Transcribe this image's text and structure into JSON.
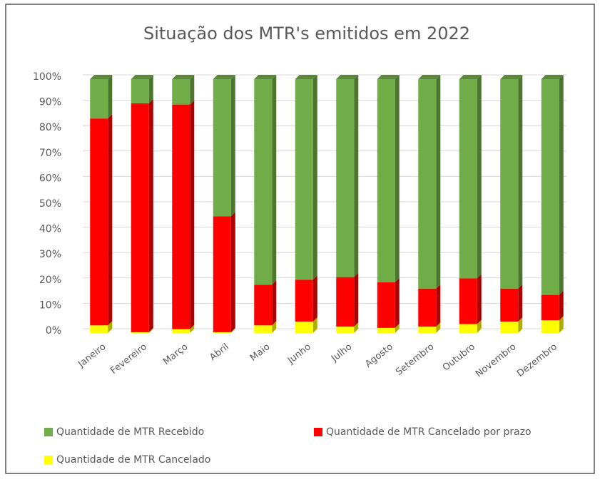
{
  "chart_data": {
    "type": "stacked-bar-3d",
    "title": "Situação dos MTR's emitidos em 2022",
    "categories": [
      "Janeiro",
      "Fevereiro",
      "Março",
      "Abril",
      "Maio",
      "Junho",
      "Julho",
      "Agosto",
      "Setembro",
      "Outubro",
      "Novembro",
      "Dezembro"
    ],
    "series": [
      {
        "name": "Quantidade de MTR Cancelado",
        "color": "#ffff00",
        "values": [
          3,
          0.3,
          1.5,
          0.3,
          3,
          4.5,
          2.5,
          2,
          2.5,
          3.5,
          4.5,
          5
        ]
      },
      {
        "name": "Quantidade de MTR Cancelado por prazo",
        "color": "#ff0000",
        "values": [
          81.5,
          90.2,
          88.5,
          45.7,
          16,
          16.5,
          19.5,
          18,
          15,
          18,
          13,
          10
        ]
      },
      {
        "name": "Quantidade de MTR Recebido",
        "color": "#70ad47",
        "values": [
          15.5,
          9.5,
          10,
          54,
          81,
          79,
          78,
          80,
          82.5,
          78.5,
          82.5,
          85
        ]
      }
    ],
    "ylim": [
      0,
      100
    ],
    "yticks": [
      {
        "value": 0,
        "label": "0%"
      },
      {
        "value": 10,
        "label": "10%"
      },
      {
        "value": 20,
        "label": "20%"
      },
      {
        "value": 30,
        "label": "30%"
      },
      {
        "value": 40,
        "label": "40%"
      },
      {
        "value": 50,
        "label": "50%"
      },
      {
        "value": 60,
        "label": "60%"
      },
      {
        "value": 70,
        "label": "70%"
      },
      {
        "value": 80,
        "label": "80%"
      },
      {
        "value": 90,
        "label": "90%"
      },
      {
        "value": 100,
        "label": "100%"
      }
    ],
    "grid": true
  }
}
